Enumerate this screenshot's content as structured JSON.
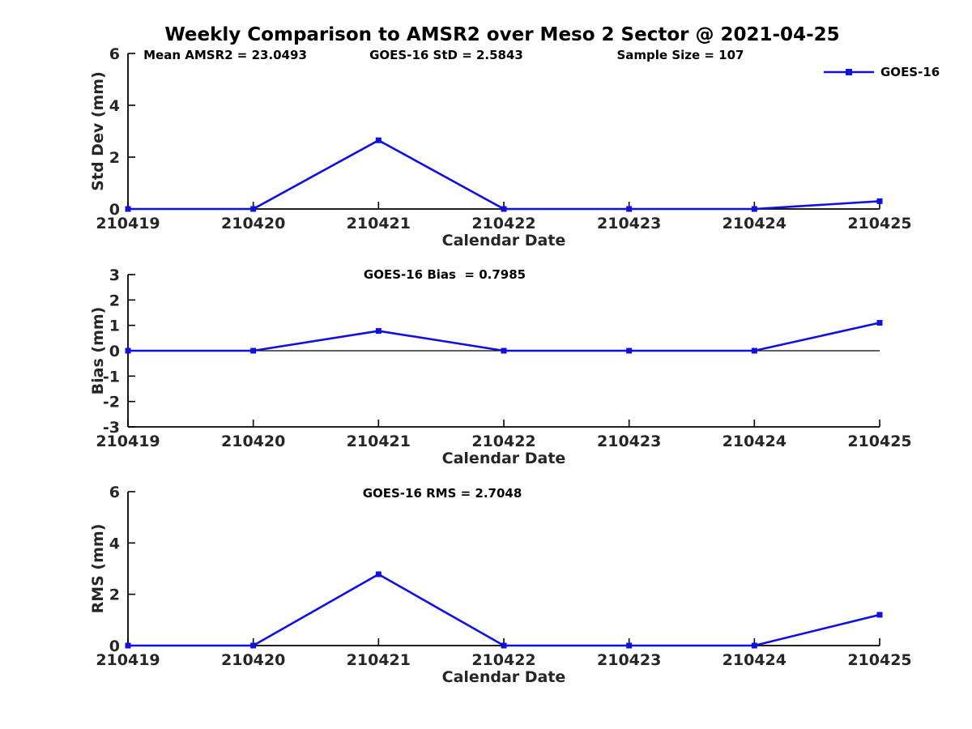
{
  "title": "Weekly Comparison to AMSR2 over Meso 2 Sector @ 2021-04-25",
  "legend": {
    "label": "GOES-16"
  },
  "colors": {
    "series": "#1010e0",
    "axis": "#000000",
    "tick_text": "#262626",
    "zero_line": "#000000"
  },
  "chart_data": [
    {
      "type": "line",
      "panel": "std_dev",
      "annotations": [
        "Mean AMSR2 = 23.0493",
        "GOES-16 StD = 2.5843",
        "Sample Size = 107"
      ],
      "x": [
        "210419",
        "210420",
        "210421",
        "210422",
        "210423",
        "210424",
        "210425"
      ],
      "series": [
        {
          "name": "GOES-16",
          "values": [
            0,
            0,
            2.65,
            0,
            0,
            0,
            0.3
          ]
        }
      ],
      "xlabel": "Calendar Date",
      "ylabel": "Std Dev (mm)",
      "ylim": [
        0,
        6
      ],
      "yticks": [
        0,
        2,
        4,
        6
      ],
      "zero_line": false,
      "grid": false,
      "legend_position": "top-right"
    },
    {
      "type": "line",
      "panel": "bias",
      "annotations": [
        "GOES-16 Bias  = 0.7985"
      ],
      "x": [
        "210419",
        "210420",
        "210421",
        "210422",
        "210423",
        "210424",
        "210425"
      ],
      "series": [
        {
          "name": "GOES-16",
          "values": [
            0,
            0,
            0.78,
            0,
            0,
            0,
            1.1
          ]
        }
      ],
      "xlabel": "Calendar Date",
      "ylabel": "Bias (mm)",
      "ylim": [
        -3,
        3
      ],
      "yticks": [
        -3,
        -2,
        -1,
        0,
        1,
        2,
        3
      ],
      "zero_line": true,
      "grid": false
    },
    {
      "type": "line",
      "panel": "rms",
      "annotations": [
        "GOES-16 RMS = 2.7048"
      ],
      "x": [
        "210419",
        "210420",
        "210421",
        "210422",
        "210423",
        "210424",
        "210425"
      ],
      "series": [
        {
          "name": "GOES-16",
          "values": [
            0,
            0,
            2.78,
            0,
            0,
            0,
            1.2
          ]
        }
      ],
      "xlabel": "Calendar Date",
      "ylabel": "RMS (mm)",
      "ylim": [
        0,
        6
      ],
      "yticks": [
        0,
        2,
        4,
        6
      ],
      "zero_line": false,
      "grid": false
    }
  ]
}
